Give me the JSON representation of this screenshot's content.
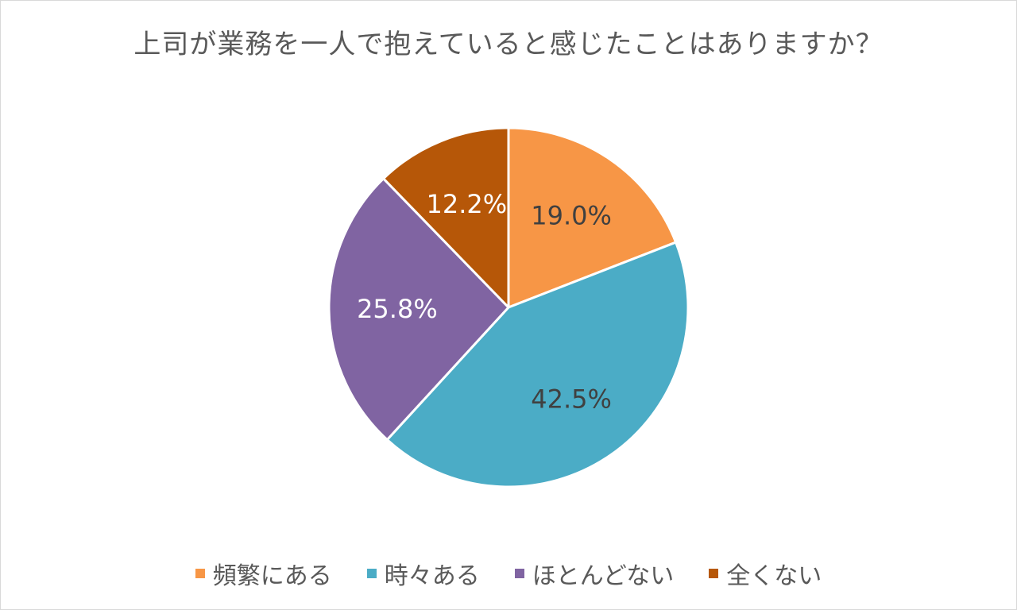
{
  "chart_data": {
    "type": "pie",
    "title": "上司が業務を一人で抱えていると感じたことはありますか？",
    "categories": [
      "頻繁にある",
      "時々ある",
      "ほとんどない",
      "全くない"
    ],
    "values": [
      19.0,
      42.5,
      25.8,
      12.2
    ],
    "value_labels": [
      "19.0%",
      "42.5%",
      "25.8%",
      "12.2%"
    ],
    "colors": [
      "#f79646",
      "#4bacc6",
      "#8064a2",
      "#b65708"
    ],
    "label_colors": [
      "#404040",
      "#404040",
      "#ffffff",
      "#ffffff"
    ],
    "legend_position": "bottom",
    "start": "12 o'clock, clockwise"
  }
}
